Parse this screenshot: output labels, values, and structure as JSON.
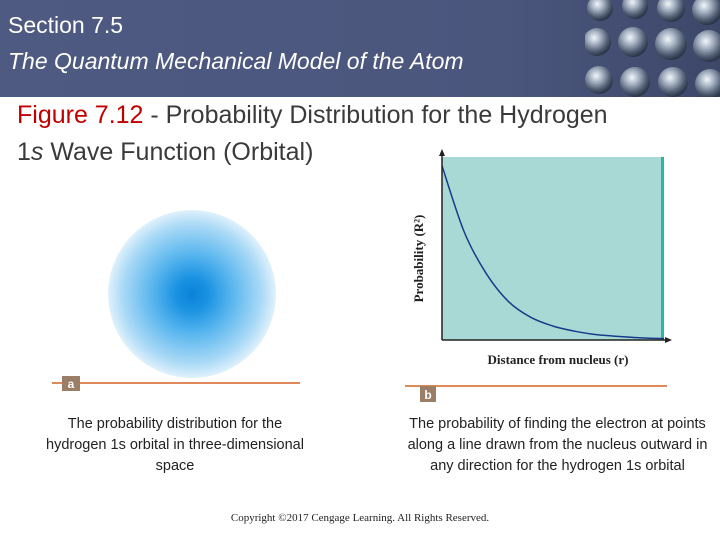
{
  "header": {
    "section": "Section 7.5",
    "subtitle": "The Quantum Mechanical Model of the Atom"
  },
  "figure": {
    "label": "Figure 7.12",
    "title_rest": " - Probability Distribution for the Hydrogen ",
    "orbital_prefix": "1",
    "orbital_s": "s",
    "orbital_rest": " Wave Function (Orbital)"
  },
  "panel_a": {
    "tag": "a",
    "caption": "The probability distribution for the hydrogen 1s orbital in three-dimensional space"
  },
  "panel_b": {
    "tag": "b",
    "caption": "The probability of finding the electron at points along a line drawn from the nucleus outward in any direction for the hydrogen 1s orbital"
  },
  "copyright": "Copyright ©2017 Cengage Learning. All Rights Reserved.",
  "colors": {
    "header_bg": "#4e5a82",
    "figure_label": "#c00000",
    "plot_fill": "#a8d9d4",
    "curve": "#1a3a8a",
    "tag_line": "#e0895a",
    "cloud": "#0a82d8"
  },
  "chart_data": {
    "type": "line",
    "title": "",
    "xlabel": "Distance from nucleus (r)",
    "ylabel": "Probability (R²)",
    "x": [
      0,
      0.5,
      1,
      1.5,
      2,
      2.5,
      3,
      3.5,
      4,
      4.5,
      5
    ],
    "series": [
      {
        "values": [
          1.0,
          0.62,
          0.38,
          0.22,
          0.13,
          0.08,
          0.05,
          0.03,
          0.02,
          0.012,
          0.008
        ]
      }
    ],
    "xlim": [
      0,
      5
    ],
    "ylim": [
      0,
      1.05
    ],
    "grid": false,
    "legend": "none"
  }
}
